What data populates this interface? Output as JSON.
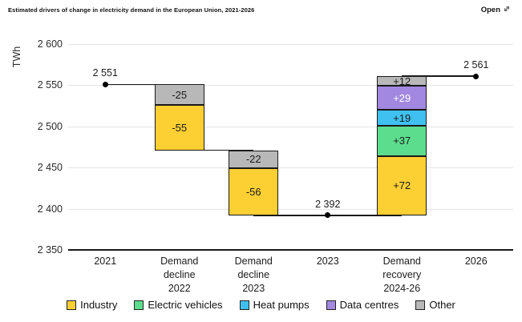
{
  "header": {
    "title": "Estimated drivers of change in electricity demand in the European Union, 2021-2026",
    "open_label": "Open"
  },
  "colors": {
    "industry": "#fccf33",
    "electric_vehicles": "#5cdd8e",
    "heat_pumps": "#3fc0f0",
    "data_centres": "#a288e0",
    "other": "#b8b8b8",
    "border": "#1a1a1a",
    "grid": "#e4e4e4",
    "text": "#1c1c1c"
  },
  "chart_data": {
    "type": "waterfall",
    "title": "Estimated drivers of change in electricity demand in the European Union, 2021-2026",
    "unit_label": "TWh",
    "ylim": [
      2350,
      2600
    ],
    "grid": true,
    "legend_position": "bottom",
    "yticks": [
      {
        "value": 2600,
        "label": "2 600"
      },
      {
        "value": 2550,
        "label": "2 550"
      },
      {
        "value": 2500,
        "label": "2 500"
      },
      {
        "value": 2450,
        "label": "2 450"
      },
      {
        "value": 2400,
        "label": "2 400"
      },
      {
        "value": 2350,
        "label": "2 350"
      }
    ],
    "columns": [
      {
        "type": "marker",
        "name": "2021",
        "label_lines": [
          "2021"
        ],
        "value": 2551,
        "value_label": "2 551"
      },
      {
        "type": "bar",
        "name": "demand-decline-2022",
        "label_lines": [
          "Demand",
          "decline",
          "2022"
        ],
        "segments": [
          {
            "series": "Other",
            "delta": -25,
            "label": "-25",
            "from": 2551,
            "to": 2526,
            "color_key": "other"
          },
          {
            "series": "Industry",
            "delta": -55,
            "label": "-55",
            "from": 2526,
            "to": 2471,
            "color_key": "industry"
          }
        ]
      },
      {
        "type": "bar",
        "name": "demand-decline-2023",
        "label_lines": [
          "Demand",
          "decline",
          "2023"
        ],
        "segments": [
          {
            "series": "Other",
            "delta": -22,
            "label": "-22",
            "from": 2471,
            "to": 2449,
            "color_key": "other"
          },
          {
            "series": "Industry",
            "delta": -56,
            "label": "-56",
            "from": 2449,
            "to": 2392,
            "color_key": "industry"
          }
        ]
      },
      {
        "type": "marker",
        "name": "2023",
        "label_lines": [
          "2023"
        ],
        "value": 2392,
        "value_label": "2 392"
      },
      {
        "type": "bar",
        "name": "demand-recovery-2024-26",
        "label_lines": [
          "Demand",
          "recovery",
          "2024-26"
        ],
        "segments": [
          {
            "series": "Industry",
            "delta": 72,
            "label": "+72",
            "from": 2392,
            "to": 2464,
            "color_key": "industry"
          },
          {
            "series": "Electric vehicles",
            "delta": 37,
            "label": "+37",
            "from": 2464,
            "to": 2501,
            "color_key": "electric_vehicles"
          },
          {
            "series": "Heat pumps",
            "delta": 19,
            "label": "+19",
            "from": 2501,
            "to": 2520,
            "color_key": "heat_pumps"
          },
          {
            "series": "Data centres",
            "delta": 29,
            "label": "+29",
            "from": 2520,
            "to": 2549,
            "color_key": "data_centres",
            "label_color": "#ffffff"
          },
          {
            "series": "Other",
            "delta": 12,
            "label": "+12",
            "from": 2549,
            "to": 2561,
            "color_key": "other"
          }
        ]
      },
      {
        "type": "marker",
        "name": "2026",
        "label_lines": [
          "2026"
        ],
        "value": 2561,
        "value_label": "2 561"
      }
    ],
    "connectors": [
      {
        "value": 2551,
        "from_col": 0,
        "to_col": 1
      },
      {
        "value": 2471,
        "from_col": 1,
        "to_col": 2
      },
      {
        "value": 2392,
        "from_col": 2,
        "to_col": 4
      },
      {
        "value": 2561,
        "from_col": 4,
        "to_col": 5
      }
    ],
    "legend": [
      {
        "label": "Industry",
        "color_key": "industry"
      },
      {
        "label": "Electric vehicles",
        "color_key": "electric_vehicles"
      },
      {
        "label": "Heat pumps",
        "color_key": "heat_pumps"
      },
      {
        "label": "Data centres",
        "color_key": "data_centres"
      },
      {
        "label": "Other",
        "color_key": "other"
      }
    ]
  }
}
